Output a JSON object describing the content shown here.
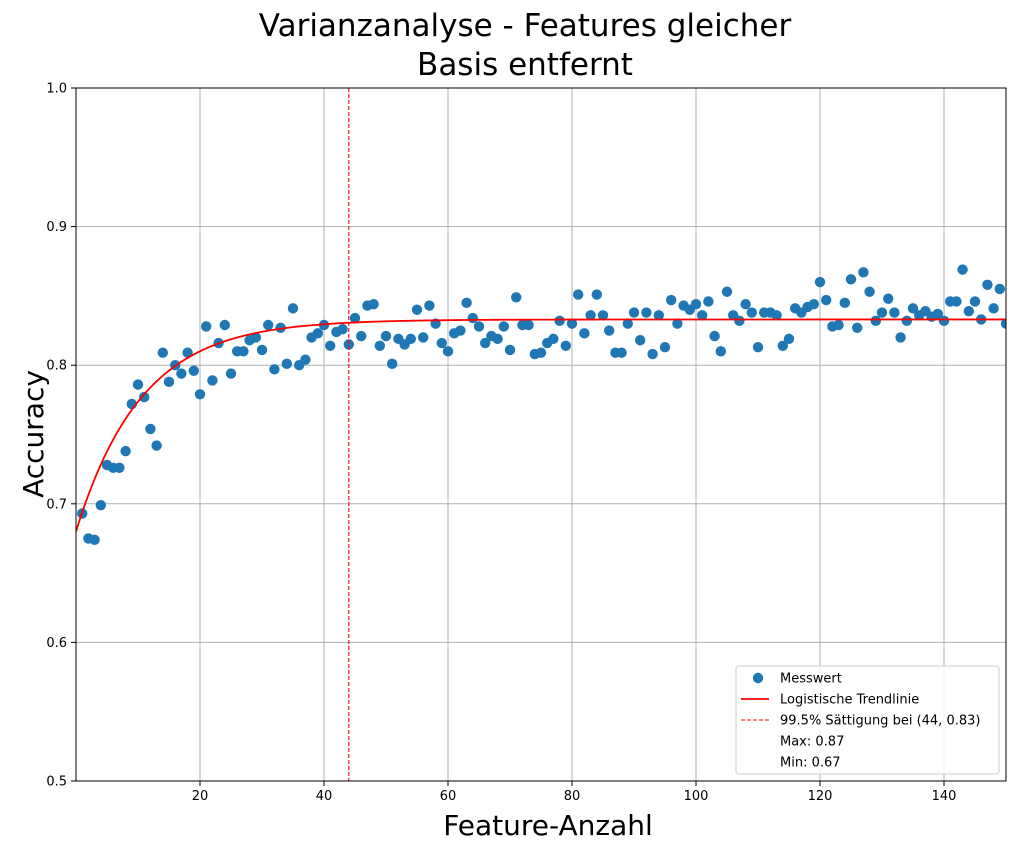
{
  "chart_data": {
    "type": "scatter",
    "title_lines": [
      "Varianzanalyse - Features gleicher",
      "Basis entfernt"
    ],
    "xlabel": "Feature-Anzahl",
    "ylabel": "Accuracy",
    "xlim": [
      0,
      150
    ],
    "ylim": [
      0.5,
      1.0
    ],
    "x_ticks": [
      20,
      40,
      60,
      80,
      100,
      120,
      140
    ],
    "y_ticks": [
      0.5,
      0.6,
      0.7,
      0.8,
      0.9,
      1.0
    ],
    "x_tick_labels": [
      "20",
      "40",
      "60",
      "80",
      "100",
      "120",
      "140"
    ],
    "y_tick_labels": [
      "0.5",
      "0.6",
      "0.7",
      "0.8",
      "0.9",
      "1.0"
    ],
    "grid": true,
    "legend_position": "bottom-right",
    "colors": {
      "points": "#1f77b4",
      "trend": "#ff0000",
      "saturation": "#ff0000",
      "grid": "#b0b0b0"
    },
    "series": [
      {
        "name": "Messwert",
        "kind": "scatter",
        "x": [
          1,
          2,
          3,
          4,
          5,
          6,
          7,
          8,
          9,
          10,
          11,
          12,
          13,
          14,
          15,
          16,
          17,
          18,
          19,
          20,
          21,
          22,
          23,
          24,
          25,
          26,
          27,
          28,
          29,
          30,
          31,
          32,
          33,
          34,
          35,
          36,
          37,
          38,
          39,
          40,
          41,
          42,
          43,
          44,
          45,
          46,
          47,
          48,
          49,
          50,
          51,
          52,
          53,
          54,
          55,
          56,
          57,
          58,
          59,
          60,
          61,
          62,
          63,
          64,
          65,
          66,
          67,
          68,
          69,
          70,
          71,
          72,
          73,
          74,
          75,
          76,
          77,
          78,
          79,
          80,
          81,
          82,
          83,
          84,
          85,
          86,
          87,
          88,
          89,
          90,
          91,
          92,
          93,
          94,
          95,
          96,
          97,
          98,
          99,
          100,
          101,
          102,
          103,
          104,
          105,
          106,
          107,
          108,
          109,
          110,
          111,
          112,
          113,
          114,
          115,
          116,
          117,
          118,
          119,
          120,
          121,
          122,
          123,
          124,
          125,
          126,
          127,
          128,
          129,
          130,
          131,
          132,
          133,
          134,
          135,
          136,
          137,
          138,
          139,
          140,
          141,
          142,
          143,
          144,
          145,
          146,
          147,
          148,
          149,
          150
        ],
        "y": [
          0.693,
          0.675,
          0.674,
          0.699,
          0.728,
          0.726,
          0.726,
          0.738,
          0.772,
          0.786,
          0.777,
          0.754,
          0.742,
          0.809,
          0.788,
          0.8,
          0.794,
          0.809,
          0.796,
          0.779,
          0.828,
          0.789,
          0.816,
          0.829,
          0.794,
          0.81,
          0.81,
          0.818,
          0.82,
          0.811,
          0.829,
          0.797,
          0.827,
          0.801,
          0.841,
          0.8,
          0.804,
          0.82,
          0.823,
          0.829,
          0.814,
          0.824,
          0.826,
          0.815,
          0.834,
          0.821,
          0.843,
          0.844,
          0.814,
          0.821,
          0.801,
          0.819,
          0.815,
          0.819,
          0.84,
          0.82,
          0.843,
          0.83,
          0.816,
          0.81,
          0.823,
          0.825,
          0.845,
          0.834,
          0.828,
          0.816,
          0.821,
          0.819,
          0.828,
          0.811,
          0.849,
          0.829,
          0.829,
          0.808,
          0.809,
          0.816,
          0.819,
          0.832,
          0.814,
          0.83,
          0.851,
          0.823,
          0.836,
          0.851,
          0.836,
          0.825,
          0.809,
          0.809,
          0.83,
          0.838,
          0.818,
          0.838,
          0.808,
          0.836,
          0.813,
          0.847,
          0.83,
          0.843,
          0.84,
          0.844,
          0.836,
          0.846,
          0.821,
          0.81,
          0.853,
          0.836,
          0.832,
          0.844,
          0.838,
          0.813,
          0.838,
          0.838,
          0.836,
          0.814,
          0.819,
          0.841,
          0.838,
          0.842,
          0.844,
          0.86,
          0.847,
          0.828,
          0.829,
          0.845,
          0.862,
          0.827,
          0.867,
          0.853,
          0.832,
          0.838,
          0.848,
          0.838,
          0.82,
          0.832,
          0.841,
          0.836,
          0.839,
          0.835,
          0.837,
          0.832,
          0.846,
          0.846,
          0.869,
          0.839,
          0.846,
          0.833,
          0.858,
          0.841,
          0.855,
          0.83
        ]
      },
      {
        "name": "Logistische Trendlinie",
        "kind": "line",
        "curve": {
          "type": "saturating_exponential",
          "asymptote": 0.833,
          "start": 0.68,
          "rate": 0.0948,
          "x_range": [
            0,
            150
          ]
        }
      },
      {
        "name": "99.5% Sättigung bei (44, 0.83)",
        "kind": "vline",
        "x": 44
      }
    ],
    "legend_extra": [
      "Max: 0.87",
      "Min: 0.67"
    ]
  }
}
